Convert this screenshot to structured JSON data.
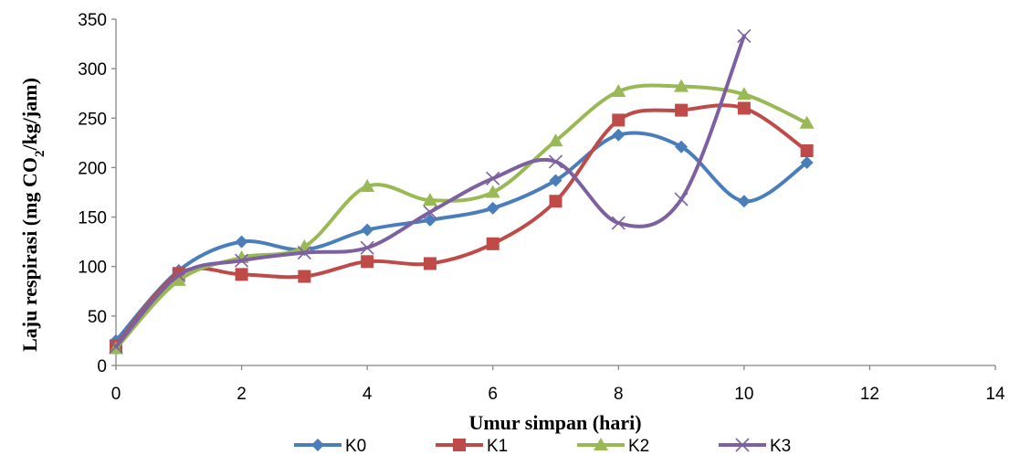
{
  "chart_data": {
    "type": "line",
    "xlabel": "Umur simpan (hari)",
    "ylabel": {
      "before": "Laju respirasi (mg CO",
      "subscript": "2",
      "after": "/kg/jam)"
    },
    "xlim": [
      0,
      14
    ],
    "ylim": [
      0,
      350
    ],
    "x_ticks": [
      0,
      2,
      4,
      6,
      8,
      10,
      12,
      14
    ],
    "y_ticks": [
      0,
      50,
      100,
      150,
      200,
      250,
      300,
      350
    ],
    "grid": false,
    "legend_position": "bottom",
    "smooth": true,
    "series": [
      {
        "name": "K0",
        "color": "#4a7ebb",
        "marker": "diamond",
        "x": [
          0,
          1,
          2,
          3,
          4,
          5,
          6,
          7,
          8,
          9,
          10,
          11
        ],
        "y": [
          25,
          96,
          125,
          117,
          137,
          147,
          159,
          187,
          233,
          221,
          166,
          205
        ]
      },
      {
        "name": "K1",
        "color": "#be4b48",
        "marker": "square",
        "x": [
          0,
          1,
          2,
          3,
          4,
          5,
          6,
          7,
          8,
          9,
          10,
          11
        ],
        "y": [
          20,
          93,
          92,
          90,
          105,
          103,
          123,
          166,
          248,
          258,
          260,
          217
        ]
      },
      {
        "name": "K2",
        "color": "#98b954",
        "marker": "triangle",
        "x": [
          0,
          1,
          2,
          3,
          4,
          5,
          6,
          7,
          8,
          9,
          10,
          11
        ],
        "y": [
          17,
          86,
          109,
          120,
          181,
          167,
          175,
          227,
          277,
          282,
          274,
          245
        ]
      },
      {
        "name": "K3",
        "color": "#7d60a0",
        "marker": "x",
        "x": [
          0,
          1,
          2,
          3,
          4,
          5,
          6,
          7,
          8,
          9,
          10
        ],
        "y": [
          19,
          91,
          106,
          114,
          119,
          155,
          189,
          206,
          144,
          168,
          333
        ]
      }
    ]
  }
}
